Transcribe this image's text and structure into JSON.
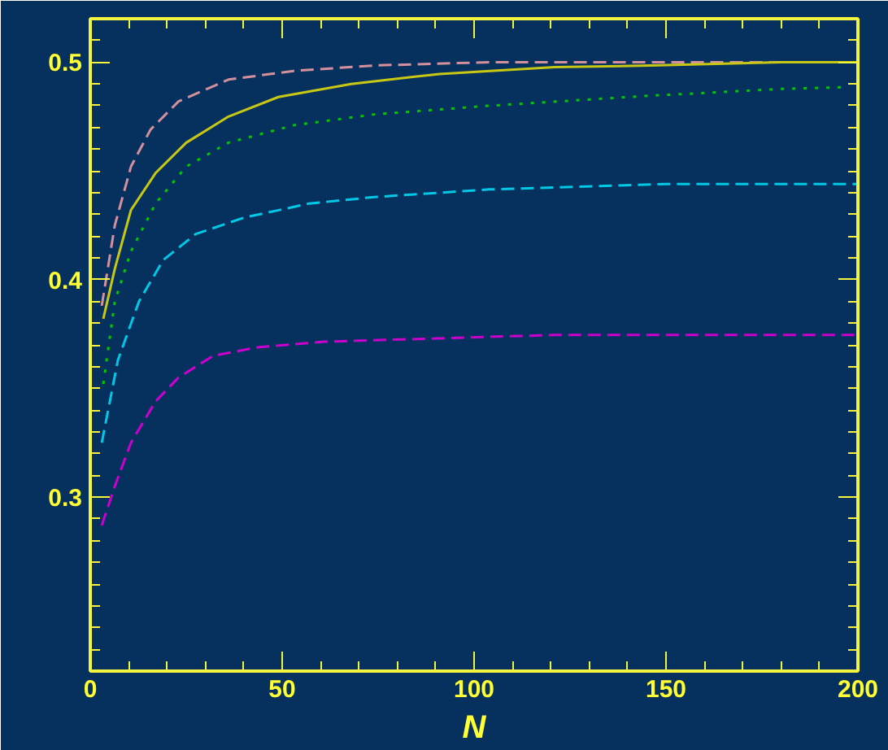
{
  "chart_data": {
    "type": "line",
    "xlabel": "N",
    "xlim": [
      0,
      200
    ],
    "ylim": [
      0.22,
      0.52
    ],
    "xticks": [
      0,
      50,
      100,
      150,
      200
    ],
    "yticks": [
      0.3,
      0.4,
      0.5
    ],
    "grid": false,
    "marker": "none",
    "series": [
      {
        "color": "#d4909c",
        "line_style": "dashed",
        "x": [
          3,
          6.4,
          10.6,
          15.7,
          23,
          36,
          53,
          74,
          104,
          150,
          200
        ],
        "values": [
          0.388,
          0.425,
          0.452,
          0.469,
          0.482,
          0.492,
          0.496,
          0.4985,
          0.5,
          0.5,
          0.5
        ]
      },
      {
        "color": "#c8c814",
        "line_style": "solid",
        "x": [
          3.4,
          6.4,
          10.6,
          17,
          25,
          36,
          49,
          68,
          91,
          121,
          146,
          180,
          200
        ],
        "values": [
          0.382,
          0.405,
          0.432,
          0.449,
          0.463,
          0.475,
          0.484,
          0.49,
          0.4946,
          0.4977,
          0.4985,
          0.5,
          0.5
        ]
      },
      {
        "color": "#00c800",
        "line_style": "dotted",
        "x": [
          3.4,
          6.4,
          10.6,
          17,
          25,
          36,
          53,
          74,
          104,
          146,
          180,
          196
        ],
        "values": [
          0.352,
          0.39,
          0.413,
          0.435,
          0.452,
          0.463,
          0.471,
          0.476,
          0.48,
          0.4846,
          0.4877,
          0.4885
        ]
      },
      {
        "color": "#00c8e6",
        "line_style": "dashed",
        "x": [
          3,
          7.2,
          12.7,
          19,
          27.5,
          40,
          57,
          74,
          104,
          150,
          200
        ],
        "values": [
          0.325,
          0.363,
          0.39,
          0.409,
          0.421,
          0.4285,
          0.435,
          0.438,
          0.4415,
          0.444,
          0.444
        ]
      },
      {
        "color": "#cc00cc",
        "line_style": "dashed",
        "x": [
          3,
          6.4,
          10.6,
          17,
          23,
          32,
          44,
          61,
          91,
          121,
          200
        ],
        "values": [
          0.287,
          0.305,
          0.325,
          0.344,
          0.355,
          0.365,
          0.369,
          0.3715,
          0.373,
          0.3746,
          0.3746
        ]
      }
    ]
  }
}
